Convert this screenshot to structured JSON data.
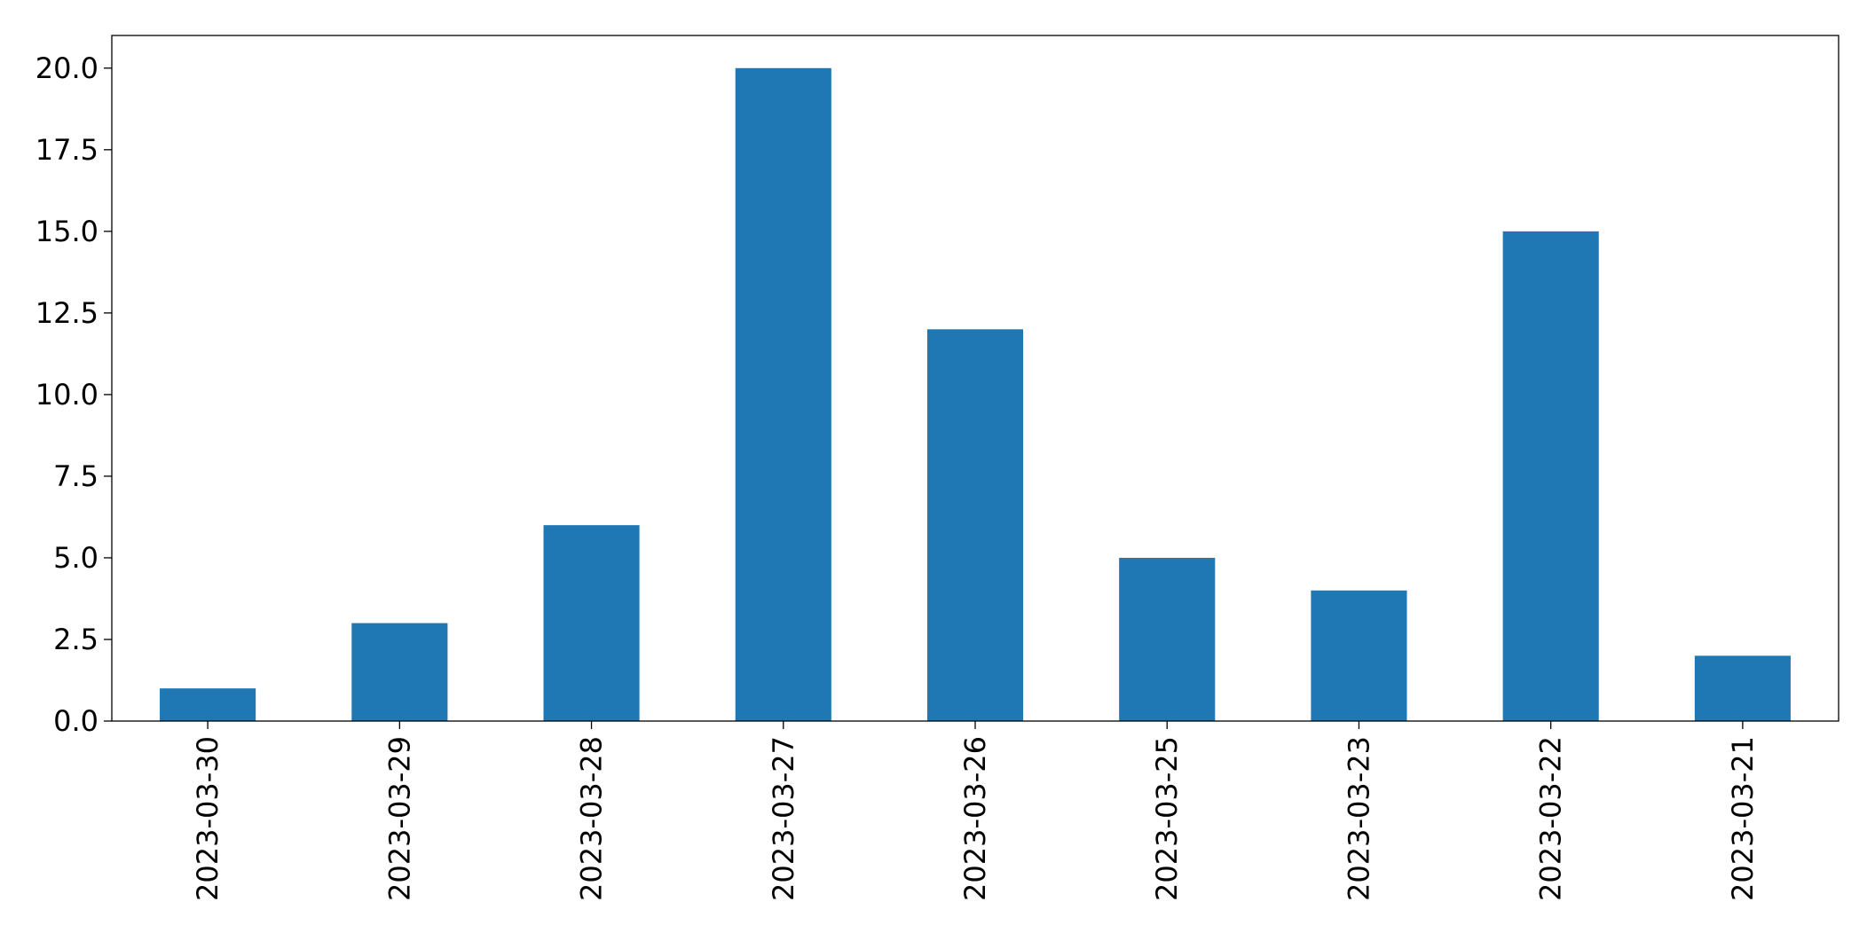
{
  "chart_data": {
    "type": "bar",
    "title": "",
    "xlabel": "",
    "ylabel": "",
    "categories": [
      "2023-03-30",
      "2023-03-29",
      "2023-03-28",
      "2023-03-27",
      "2023-03-26",
      "2023-03-25",
      "2023-03-23",
      "2023-03-22",
      "2023-03-21"
    ],
    "values": [
      1,
      3,
      6,
      20,
      12,
      5,
      4,
      15,
      2
    ],
    "ylim": [
      0,
      21
    ],
    "yticks": [
      "0.0",
      "2.5",
      "5.0",
      "7.5",
      "10.0",
      "12.5",
      "15.0",
      "17.5",
      "20.0"
    ],
    "bar_color": "#1f77b4",
    "grid": false,
    "legend": "none",
    "x_tick_rotation_degrees": 90
  }
}
